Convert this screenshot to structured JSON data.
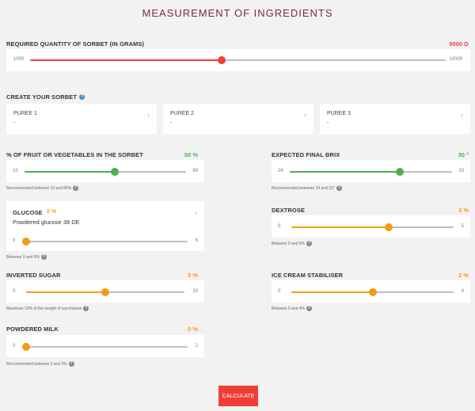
{
  "title": "MEASUREMENT OF INGREDIENTS",
  "quantity": {
    "label": "REQUIRED QUANTITY OF SORBET (IN GRAMS)",
    "value": "5000 G",
    "min": "1000",
    "max": "10000",
    "fraction": 0.46,
    "color": "#ef3e36"
  },
  "create": {
    "label": "CREATE YOUR SORBET"
  },
  "purees": [
    {
      "name": "PUREE 1",
      "value": "-"
    },
    {
      "name": "PUREE 2",
      "value": "-"
    },
    {
      "name": "PUREE 3",
      "value": "-"
    }
  ],
  "fruit": {
    "label": "% OF FRUIT OR VEGETABLES IN THE SORBET",
    "value": "50 %",
    "min": "10",
    "max": "80",
    "fraction": 0.56,
    "hint": "Recommended between 10 and 80%",
    "color": "#4caf50"
  },
  "brix": {
    "label": "EXPECTED FINAL BRIX",
    "value": "30 °",
    "min": "24",
    "max": "33",
    "fraction": 0.68,
    "hint": "Recommended between 24 and 33°",
    "color": "#4caf50"
  },
  "glucose": {
    "label": "GLUCOSE",
    "value": "0 %",
    "type": "Powdered glucose 38 DE",
    "min": "0",
    "max": "6",
    "fraction": 0.0,
    "hint": "Between 0 and 6%",
    "color": "#f39c12"
  },
  "dextrose": {
    "label": "DEXTROSE",
    "value": "3 %",
    "min": "0",
    "max": "5",
    "fraction": 0.6,
    "hint": "Between 0 and 5%",
    "color": "#f39c12"
  },
  "inverted": {
    "label": "INVERTED SUGAR",
    "value": "5 %",
    "min": "0",
    "max": "10",
    "fraction": 0.5,
    "hint": "Maximum 10% of the weight of saccharose",
    "color": "#f39c12"
  },
  "stabiliser": {
    "label": "ICE CREAM STABILISER",
    "value": "2 %",
    "min": "0",
    "max": "4",
    "fraction": 0.5,
    "hint": "Between 0 and 4%",
    "color": "#f39c12"
  },
  "milk": {
    "label": "POWDERED MILK",
    "value": "0 %",
    "min": "0",
    "max": "2",
    "fraction": 0.0,
    "hint": "Recommended between 0 and 2%",
    "color": "#f39c12"
  },
  "calculate": {
    "label": "CALCULATE"
  }
}
